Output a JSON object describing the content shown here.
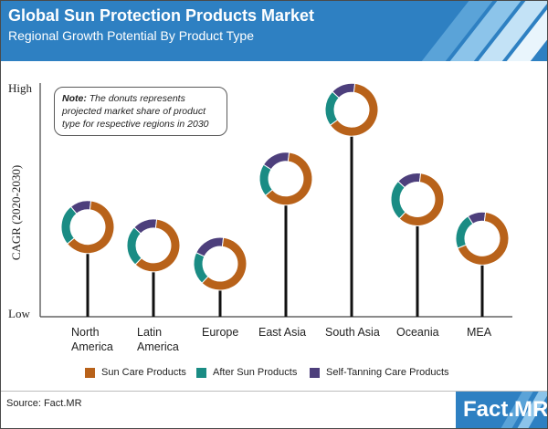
{
  "header": {
    "title": "Global Sun Protection  Products Market",
    "subtitle": "Regional  Growth Potential By Product  Type"
  },
  "note": {
    "bold": "Note:",
    "text": "The donuts represents projected market share of product type for respective regions in 2030"
  },
  "chart_data": {
    "type": "donut-lollipop",
    "ylabel": "CAGR (2020-2030)",
    "y_ticks": {
      "high": "High",
      "low": "Low"
    },
    "y_scale": "qualitative",
    "categories": [
      "North\nAmerica",
      "Latin\nAmerica",
      "Europe",
      "East Asia",
      "South Asia",
      "Oceania",
      "MEA"
    ],
    "cagr_relative": [
      0.39,
      0.31,
      0.23,
      0.6,
      0.9,
      0.51,
      0.34
    ],
    "series": [
      {
        "name": "Sun Care Products",
        "color": "#b8621a",
        "shares": [
          0.62,
          0.6,
          0.6,
          0.62,
          0.63,
          0.6,
          0.67
        ]
      },
      {
        "name": "After Sun Products",
        "color": "#1a8c84",
        "shares": [
          0.25,
          0.25,
          0.2,
          0.2,
          0.22,
          0.25,
          0.22
        ]
      },
      {
        "name": "Self-Tanning Care Products",
        "color": "#4d3f7c",
        "shares": [
          0.13,
          0.15,
          0.2,
          0.18,
          0.15,
          0.15,
          0.11
        ]
      }
    ]
  },
  "source": "Source: Fact.MR",
  "logo": {
    "brand": "Fact.MR"
  }
}
